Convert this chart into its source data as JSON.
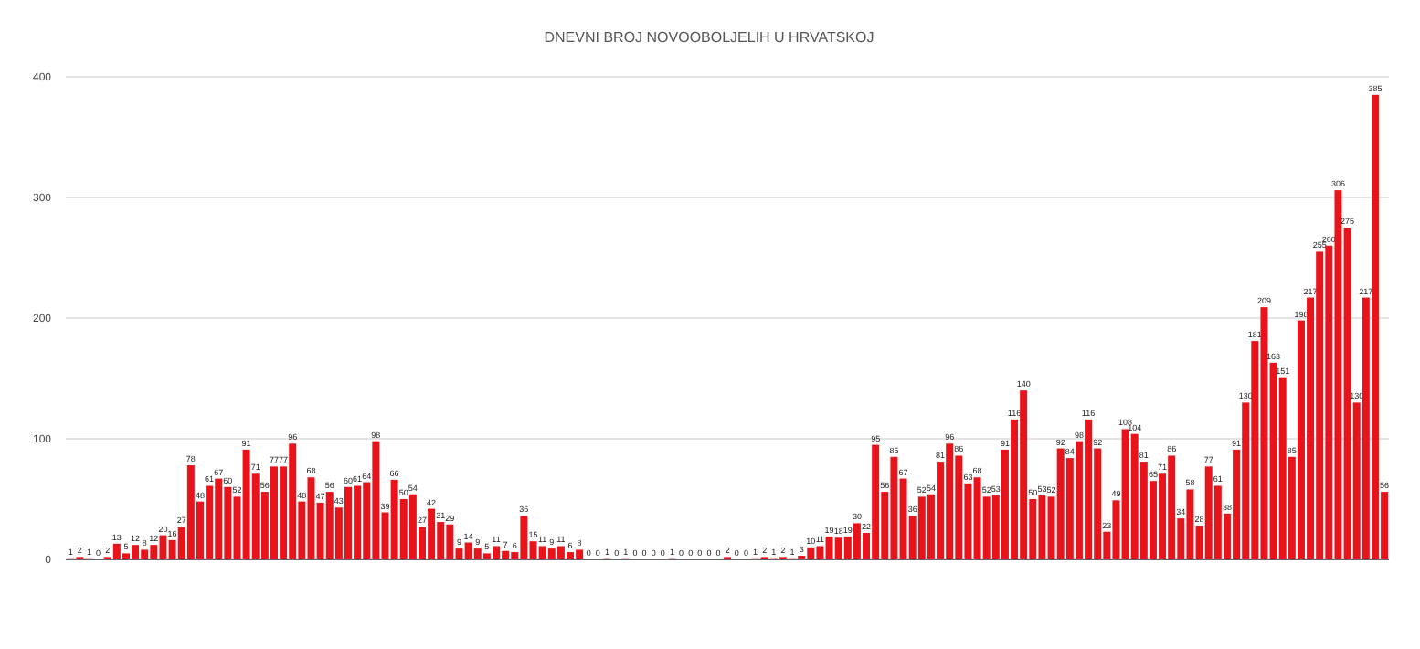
{
  "chart_data": {
    "type": "bar",
    "title": "DNEVNI BROJ NOVOOBOLJELIH U HRVATSKOJ",
    "categories": [
      null,
      null,
      null,
      null,
      null,
      null,
      null,
      null,
      null,
      null,
      null,
      null,
      null,
      null,
      null,
      null,
      null,
      null,
      null,
      null,
      null,
      null,
      null,
      null,
      null,
      null,
      null,
      null,
      null,
      null,
      null,
      null,
      null,
      null,
      null,
      null,
      null,
      null,
      null,
      null,
      null,
      null,
      null,
      null,
      null,
      null,
      null,
      null,
      null,
      null,
      null,
      null,
      null,
      null,
      null,
      null,
      null,
      null,
      null,
      null,
      null,
      null,
      null,
      null,
      null,
      null,
      null,
      null,
      null,
      null,
      null,
      null,
      null,
      null,
      null,
      null,
      null,
      null,
      null,
      null,
      null,
      null,
      null,
      null,
      null,
      null,
      null,
      null,
      null,
      null,
      null,
      null,
      null,
      null,
      null,
      null,
      null,
      null,
      null,
      null,
      null,
      null,
      null,
      null,
      null,
      null,
      null,
      null,
      null,
      null,
      null,
      null,
      null,
      null,
      null,
      null,
      null,
      null,
      null,
      null,
      null,
      null,
      null,
      null,
      null,
      null,
      null,
      null,
      null,
      null,
      null,
      null,
      null,
      null,
      null,
      null,
      null,
      null,
      null,
      null,
      null,
      null,
      null
    ],
    "values": [
      1,
      2,
      1,
      0,
      2,
      13,
      5,
      12,
      8,
      12,
      20,
      16,
      27,
      78,
      48,
      61,
      67,
      60,
      52,
      91,
      71,
      56,
      77,
      77,
      96,
      48,
      68,
      47,
      56,
      43,
      60,
      61,
      64,
      98,
      39,
      66,
      50,
      54,
      27,
      42,
      31,
      29,
      9,
      14,
      9,
      5,
      11,
      7,
      6,
      36,
      15,
      11,
      9,
      11,
      6,
      8,
      0,
      0,
      1,
      0,
      1,
      0,
      0,
      0,
      0,
      1,
      0,
      0,
      0,
      0,
      0,
      2,
      0,
      0,
      1,
      2,
      1,
      2,
      1,
      3,
      10,
      11,
      19,
      18,
      19,
      30,
      22,
      95,
      56,
      85,
      67,
      36,
      52,
      54,
      81,
      96,
      86,
      63,
      68,
      52,
      53,
      91,
      116,
      140,
      50,
      53,
      52,
      92,
      84,
      98,
      116,
      92,
      23,
      49,
      108,
      104,
      81,
      65,
      71,
      86,
      34,
      58,
      28,
      77,
      61,
      38,
      91,
      130,
      181,
      209,
      163,
      151,
      85,
      198,
      217,
      255,
      260,
      306,
      275,
      130,
      217,
      385,
      56
    ],
    "color": "#e8141b",
    "ylim": [
      0,
      400
    ],
    "yticks": [
      0,
      100,
      200,
      300,
      400
    ],
    "grid": "y",
    "data_labels": true
  }
}
